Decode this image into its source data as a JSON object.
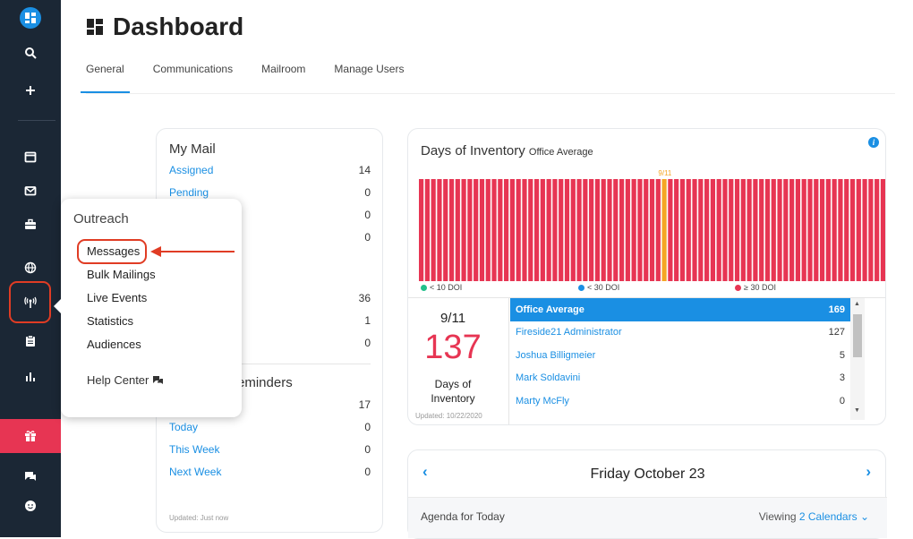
{
  "page": {
    "title": "Dashboard"
  },
  "tabs": [
    {
      "label": "General",
      "active": true
    },
    {
      "label": "Communications",
      "active": false
    },
    {
      "label": "Mailroom",
      "active": false
    },
    {
      "label": "Manage Users",
      "active": false
    }
  ],
  "sidebar": {
    "icons": [
      "logo-icon",
      "search-icon",
      "plus-icon",
      "calendar-icon",
      "mail-icon",
      "briefcase-icon",
      "globe-icon",
      "broadcast-icon",
      "clipboard-icon",
      "bar-chart-icon",
      "gift-icon",
      "chat-icon",
      "smiley-icon"
    ],
    "active": "broadcast-icon",
    "accent": "#e73553"
  },
  "my_mail": {
    "title": "My Mail",
    "rows": [
      {
        "label": "Assigned",
        "value": "14"
      },
      {
        "label": "Pending",
        "value": "0"
      },
      {
        "label": "",
        "value": "0"
      },
      {
        "label": "",
        "value": "0"
      },
      {
        "label": "",
        "value": "36"
      },
      {
        "label": "",
        "value": "1"
      },
      {
        "label": "",
        "value": "0"
      }
    ],
    "reminders_title": "eminders",
    "reminder_rows": [
      {
        "label": "",
        "value": "17"
      },
      {
        "label": "Today",
        "value": "0"
      },
      {
        "label": "This Week",
        "value": "0"
      },
      {
        "label": "Next Week",
        "value": "0"
      }
    ],
    "updated": "Updated: Just now"
  },
  "outreach_menu": {
    "title": "Outreach",
    "items": [
      "Messages",
      "Bulk Mailings",
      "Live Events",
      "Statistics",
      "Audiences"
    ],
    "highlighted": "Messages",
    "help": "Help Center"
  },
  "doi": {
    "title": "Days of Inventory",
    "subtitle": "Office Average",
    "marker_label": "9/11",
    "legend": [
      {
        "label": "< 10 DOI",
        "color": "#22c08a"
      },
      {
        "label": "< 30 DOI",
        "color": "#1a8fe3"
      },
      {
        "label": "≥ 30 DOI",
        "color": "#e73553"
      }
    ],
    "selected_date": "9/11",
    "big_value": "137",
    "big_label_1": "Days of",
    "big_label_2": "Inventory",
    "updated": "Updated: 10/22/2020",
    "rows": [
      {
        "name": "Office Average",
        "value": "169",
        "highlight": true
      },
      {
        "name": "Fireside21 Administrator",
        "value": "127",
        "highlight": false
      },
      {
        "name": "Joshua Billigmeier",
        "value": "5",
        "highlight": false
      },
      {
        "name": "Mark Soldavini",
        "value": "3",
        "highlight": false
      },
      {
        "name": "Marty McFly",
        "value": "0",
        "highlight": false
      }
    ],
    "bar_color": "#e73553",
    "highlight_color": "#f5a623"
  },
  "chart_data": {
    "type": "bar",
    "title": "Days of Inventory",
    "subtitle": "Office Average",
    "bars": 80,
    "highlight_index": 40,
    "highlight_label": "9/11",
    "note": "All bars reach the top of the plot area"
  },
  "calendar": {
    "title": "Friday October 23",
    "agenda": "Agenda for Today",
    "viewing_prefix": "Viewing ",
    "viewing_link": "2 Calendars",
    "prev": "‹",
    "next": "›"
  }
}
